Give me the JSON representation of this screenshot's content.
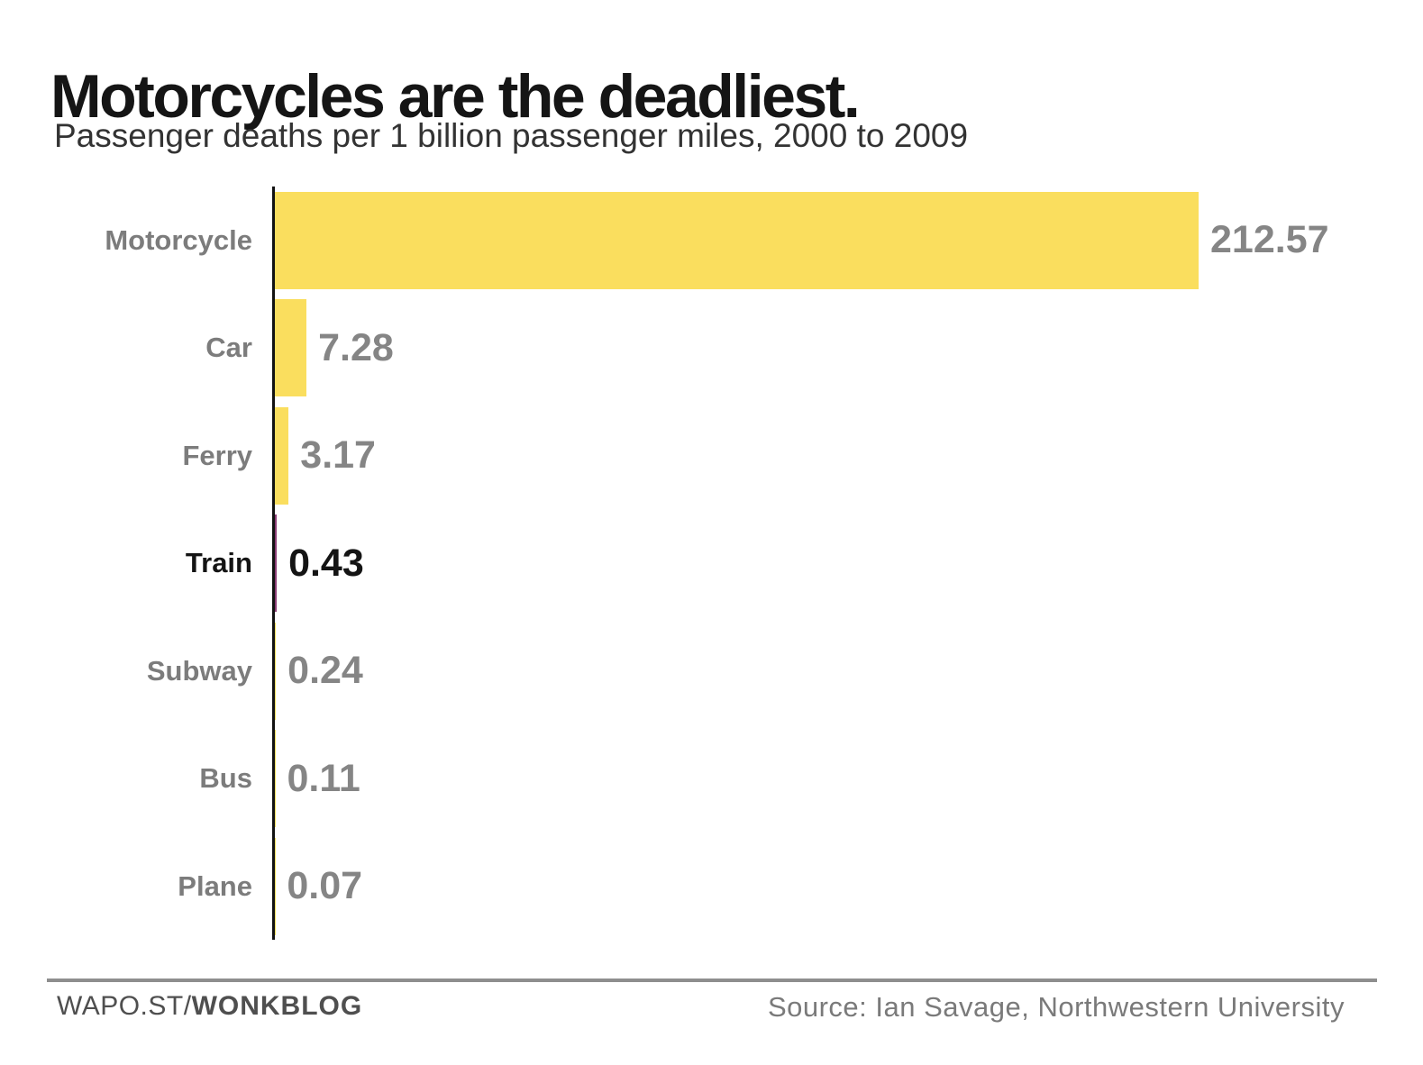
{
  "header": {
    "title": "Motorcycles are the deadliest.",
    "subtitle": "Passenger deaths per 1 billion passenger miles, 2000 to 2009"
  },
  "chart_data": {
    "type": "bar",
    "orientation": "horizontal",
    "title": "Motorcycles are the deadliest.",
    "subtitle": "Passenger deaths per 1 billion passenger miles, 2000 to 2009",
    "xlabel": "",
    "ylabel": "",
    "categories": [
      "Motorcycle",
      "Car",
      "Ferry",
      "Train",
      "Subway",
      "Bus",
      "Plane"
    ],
    "values": [
      212.57,
      7.28,
      3.17,
      0.43,
      0.24,
      0.11,
      0.07
    ],
    "value_labels": [
      "212.57",
      "7.28",
      "3.17",
      "0.43",
      "0.24",
      "0.11",
      "0.07"
    ],
    "highlight_category": "Train",
    "xlim": [
      0,
      212.57
    ],
    "grid": false,
    "legend": false,
    "bar_color": "#FADE5E",
    "highlight_bar_color": "#8A3D74",
    "label_color": "#7c7c7c",
    "value_color": "#858585",
    "highlight_text_color": "#141414",
    "axis_color": "#121212"
  },
  "footer": {
    "brand_prefix": "WAPO.ST/",
    "brand_bold": "WONKBLOG",
    "source": "Source: Ian Savage, Northwestern University"
  }
}
